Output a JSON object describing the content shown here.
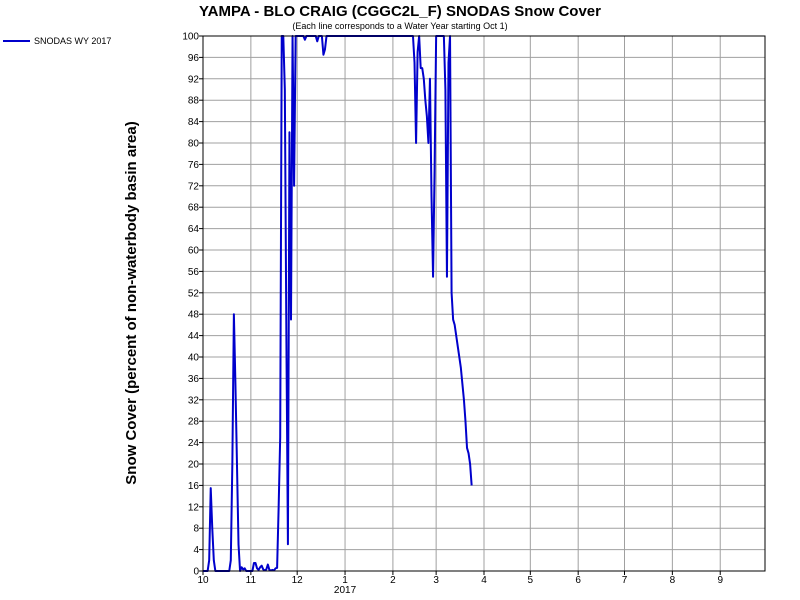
{
  "chart_data": {
    "type": "line",
    "title": "YAMPA - BLO CRAIG (CGGC2L_F) SNODAS Snow Cover",
    "subtitle": "(Each line corresponds to a Water Year starting Oct 1)",
    "ylabel": "Snow Cover (percent of non-waterbody basin area)",
    "xlabel": "",
    "ylim": [
      0,
      100
    ],
    "y_ticks": [
      0,
      4,
      8,
      12,
      16,
      20,
      24,
      28,
      32,
      36,
      40,
      44,
      48,
      52,
      56,
      60,
      64,
      68,
      72,
      76,
      80,
      84,
      88,
      92,
      96,
      100
    ],
    "x_ticks": [
      {
        "label": "10",
        "date": "2016-10-01"
      },
      {
        "label": "11",
        "date": "2016-11-01"
      },
      {
        "label": "12",
        "date": "2016-12-01"
      },
      {
        "label": "1",
        "date": "2017-01-01"
      },
      {
        "label": "2",
        "date": "2017-02-01"
      },
      {
        "label": "3",
        "date": "2017-03-01"
      },
      {
        "label": "4",
        "date": "2017-04-01"
      },
      {
        "label": "5",
        "date": "2017-05-01"
      },
      {
        "label": "6",
        "date": "2017-06-01"
      },
      {
        "label": "7",
        "date": "2017-07-01"
      },
      {
        "label": "8",
        "date": "2017-08-01"
      },
      {
        "label": "9",
        "date": "2017-09-01"
      }
    ],
    "x_year_label": "2017",
    "xlim": [
      "2016-10-01",
      "2017-09-30"
    ],
    "grid": true,
    "legend": {
      "position": "top-left",
      "entries": [
        {
          "name": "SNODAS WY 2017",
          "color": "#0000cc"
        }
      ]
    },
    "series": [
      {
        "name": "SNODAS WY 2017",
        "color": "#0000cc",
        "points": [
          [
            "2016-10-01",
            0
          ],
          [
            "2016-10-02",
            0
          ],
          [
            "2016-10-03",
            0
          ],
          [
            "2016-10-04",
            0
          ],
          [
            "2016-10-05",
            2
          ],
          [
            "2016-10-06",
            15.5
          ],
          [
            "2016-10-07",
            8
          ],
          [
            "2016-10-08",
            2
          ],
          [
            "2016-10-09",
            0
          ],
          [
            "2016-10-10",
            0
          ],
          [
            "2016-10-11",
            0
          ],
          [
            "2016-10-12",
            0
          ],
          [
            "2016-10-13",
            0
          ],
          [
            "2016-10-14",
            0
          ],
          [
            "2016-10-15",
            0
          ],
          [
            "2016-10-16",
            0
          ],
          [
            "2016-10-17",
            0
          ],
          [
            "2016-10-18",
            0
          ],
          [
            "2016-10-19",
            2
          ],
          [
            "2016-10-20",
            20
          ],
          [
            "2016-10-21",
            48
          ],
          [
            "2016-10-22",
            35
          ],
          [
            "2016-10-23",
            20
          ],
          [
            "2016-10-24",
            5
          ],
          [
            "2016-10-25",
            0
          ],
          [
            "2016-10-26",
            0.7
          ],
          [
            "2016-10-27",
            0.3
          ],
          [
            "2016-10-28",
            0.5
          ],
          [
            "2016-10-29",
            0
          ],
          [
            "2016-10-30",
            0
          ],
          [
            "2016-10-31",
            0
          ],
          [
            "2016-11-01",
            0
          ],
          [
            "2016-11-02",
            0
          ],
          [
            "2016-11-03",
            1.5
          ],
          [
            "2016-11-04",
            1.5
          ],
          [
            "2016-11-05",
            0.5
          ],
          [
            "2016-11-06",
            0.2
          ],
          [
            "2016-11-07",
            0.7
          ],
          [
            "2016-11-08",
            1
          ],
          [
            "2016-11-09",
            0.3
          ],
          [
            "2016-11-10",
            0.1
          ],
          [
            "2016-11-11",
            0.3
          ],
          [
            "2016-11-12",
            1.2
          ],
          [
            "2016-11-13",
            0.2
          ],
          [
            "2016-11-14",
            0.1
          ],
          [
            "2016-11-15",
            0.2
          ],
          [
            "2016-11-16",
            0.1
          ],
          [
            "2016-11-17",
            0.5
          ],
          [
            "2016-11-18",
            0.6
          ],
          [
            "2016-11-19",
            12
          ],
          [
            "2016-11-20",
            25
          ],
          [
            "2016-11-21",
            100
          ],
          [
            "2016-11-22",
            100
          ],
          [
            "2016-11-23",
            90
          ],
          [
            "2016-11-24",
            44
          ],
          [
            "2016-11-25",
            5
          ],
          [
            "2016-11-26",
            82
          ],
          [
            "2016-11-27",
            47
          ],
          [
            "2016-11-28",
            100
          ],
          [
            "2016-11-29",
            72
          ],
          [
            "2016-11-30",
            100
          ],
          [
            "2016-12-01",
            100
          ],
          [
            "2016-12-02",
            100
          ],
          [
            "2016-12-03",
            100
          ],
          [
            "2016-12-04",
            100
          ],
          [
            "2016-12-05",
            100
          ],
          [
            "2016-12-06",
            99.3
          ],
          [
            "2016-12-07",
            100
          ],
          [
            "2016-12-08",
            100
          ],
          [
            "2016-12-09",
            100
          ],
          [
            "2016-12-10",
            100
          ],
          [
            "2016-12-11",
            100
          ],
          [
            "2016-12-12",
            100
          ],
          [
            "2016-12-13",
            100
          ],
          [
            "2016-12-14",
            99
          ],
          [
            "2016-12-15",
            100
          ],
          [
            "2016-12-16",
            100
          ],
          [
            "2016-12-17",
            100
          ],
          [
            "2016-12-18",
            96.5
          ],
          [
            "2016-12-19",
            97.5
          ],
          [
            "2016-12-20",
            100
          ],
          [
            "2016-12-21",
            100
          ],
          [
            "2016-12-22",
            100
          ],
          [
            "2016-12-23",
            100
          ],
          [
            "2016-12-24",
            100
          ],
          [
            "2016-12-25",
            100
          ],
          [
            "2016-12-26",
            100
          ],
          [
            "2016-12-27",
            100
          ],
          [
            "2016-12-28",
            100
          ],
          [
            "2016-12-29",
            100
          ],
          [
            "2016-12-30",
            100
          ],
          [
            "2016-12-31",
            100
          ],
          [
            "2017-01-01",
            100
          ],
          [
            "2017-01-10",
            100
          ],
          [
            "2017-01-20",
            100
          ],
          [
            "2017-01-31",
            100
          ],
          [
            "2017-02-01",
            100
          ],
          [
            "2017-02-10",
            100
          ],
          [
            "2017-02-14",
            100
          ],
          [
            "2017-02-15",
            95
          ],
          [
            "2017-02-16",
            80
          ],
          [
            "2017-02-17",
            97
          ],
          [
            "2017-02-18",
            100
          ],
          [
            "2017-02-19",
            94
          ],
          [
            "2017-02-20",
            94
          ],
          [
            "2017-02-21",
            92
          ],
          [
            "2017-02-22",
            88
          ],
          [
            "2017-02-23",
            85
          ],
          [
            "2017-02-24",
            80
          ],
          [
            "2017-02-25",
            92
          ],
          [
            "2017-02-26",
            70
          ],
          [
            "2017-02-27",
            55
          ],
          [
            "2017-02-28",
            75
          ],
          [
            "2017-03-01",
            100
          ],
          [
            "2017-03-02",
            100
          ],
          [
            "2017-03-03",
            100
          ],
          [
            "2017-03-04",
            100
          ],
          [
            "2017-03-05",
            100
          ],
          [
            "2017-03-06",
            100
          ],
          [
            "2017-03-07",
            90
          ],
          [
            "2017-03-08",
            55
          ],
          [
            "2017-03-09",
            95
          ],
          [
            "2017-03-10",
            100
          ],
          [
            "2017-03-11",
            52
          ],
          [
            "2017-03-12",
            47
          ],
          [
            "2017-03-13",
            46
          ],
          [
            "2017-03-14",
            44
          ],
          [
            "2017-03-15",
            42
          ],
          [
            "2017-03-16",
            40
          ],
          [
            "2017-03-17",
            38
          ],
          [
            "2017-03-18",
            35
          ],
          [
            "2017-03-19",
            32
          ],
          [
            "2017-03-20",
            28
          ],
          [
            "2017-03-21",
            23
          ],
          [
            "2017-03-22",
            22
          ],
          [
            "2017-03-23",
            20
          ],
          [
            "2017-03-24",
            16
          ]
        ]
      }
    ]
  }
}
